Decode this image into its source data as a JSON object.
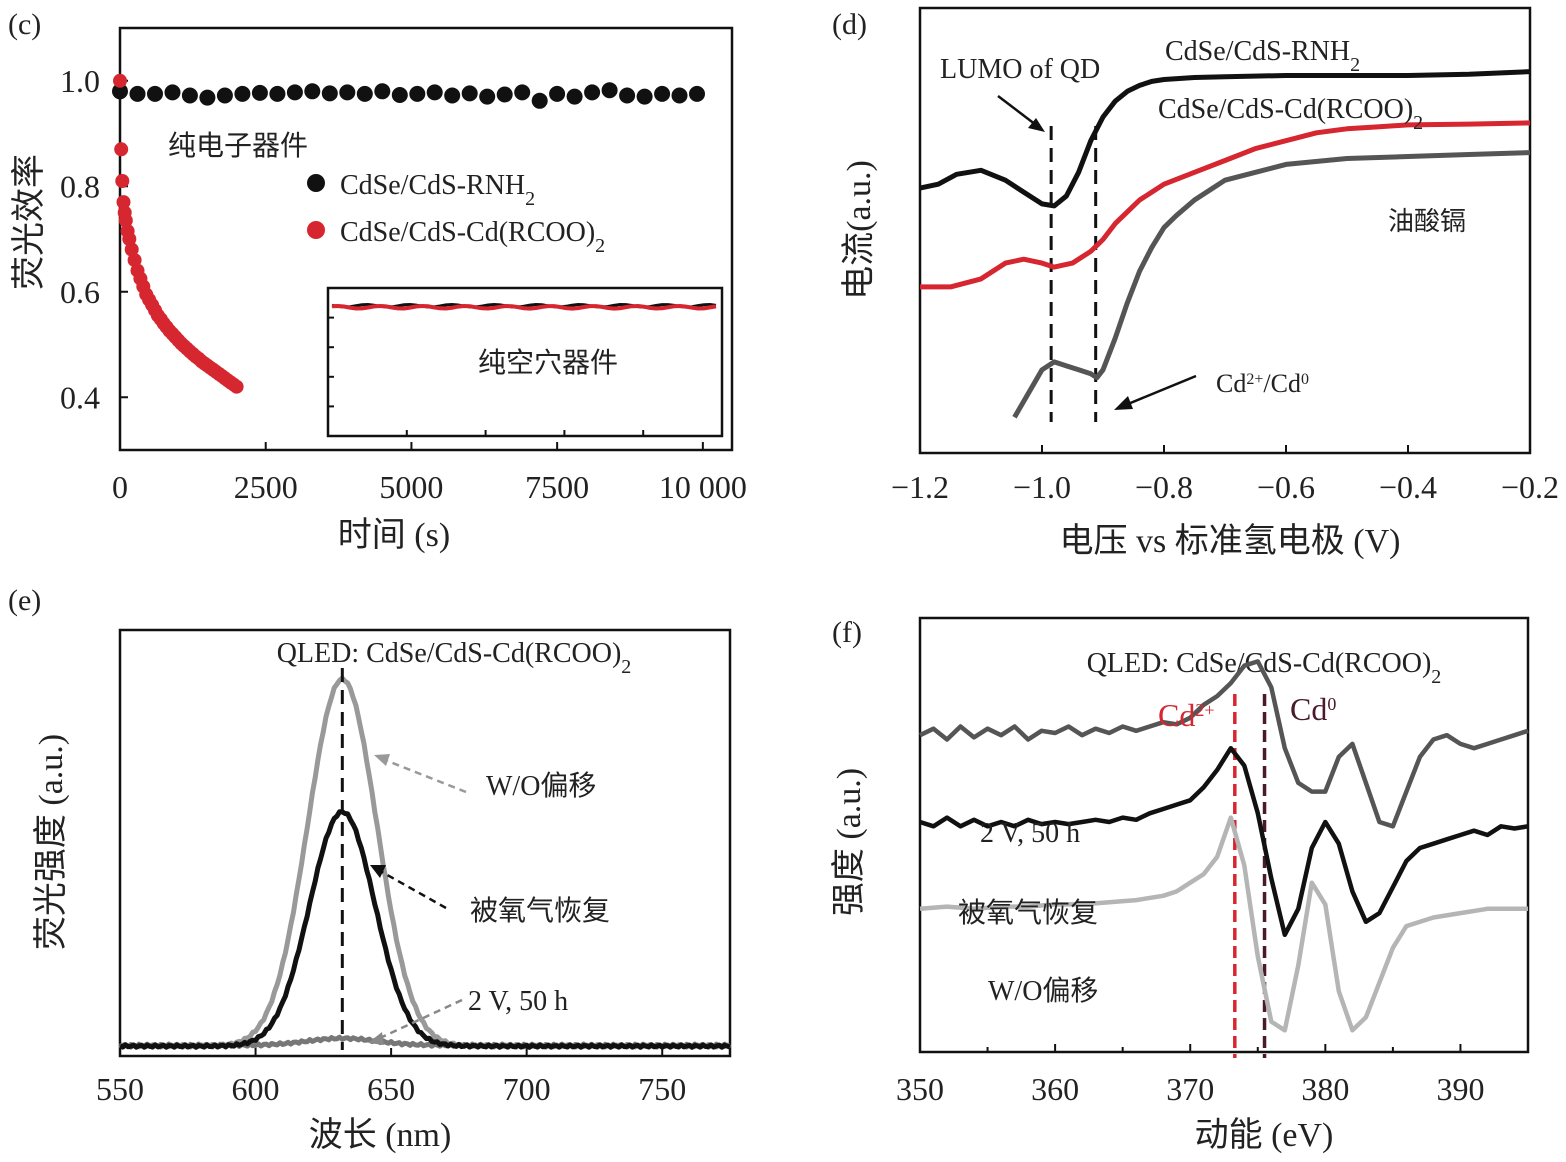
{
  "chart_data": [
    {
      "id": "c",
      "type": "scatter",
      "panel_label": "(c)",
      "xlabel": "时间 (s)",
      "ylabel": "荧光效率",
      "xlim": [
        0,
        10500
      ],
      "ylim": [
        0.3,
        1.1
      ],
      "xticks": [
        0,
        2500,
        5000,
        7500,
        10000
      ],
      "xtick_labels": [
        "0",
        "2500",
        "5000",
        "7500",
        "10 000"
      ],
      "yticks": [
        0.4,
        0.6,
        0.8,
        1.0
      ],
      "ytick_labels": [
        "0.4",
        "0.6",
        "0.8",
        "1.0"
      ],
      "annotation": "纯电子器件",
      "series": [
        {
          "name": "CdSe/CdS-RNH",
          "name_sub": "2",
          "color": "#111111",
          "x": [
            0,
            300,
            600,
            900,
            1200,
            1500,
            1800,
            2100,
            2400,
            2700,
            3000,
            3300,
            3600,
            3900,
            4200,
            4500,
            4800,
            5100,
            5400,
            5700,
            6000,
            6300,
            6600,
            6900,
            7200,
            7500,
            7800,
            8100,
            8400,
            8700,
            9000,
            9300,
            9600,
            9900
          ],
          "y": [
            0.98,
            0.975,
            0.975,
            0.978,
            0.972,
            0.968,
            0.972,
            0.975,
            0.977,
            0.975,
            0.978,
            0.98,
            0.976,
            0.978,
            0.975,
            0.98,
            0.973,
            0.975,
            0.978,
            0.972,
            0.976,
            0.97,
            0.974,
            0.978,
            0.962,
            0.975,
            0.97,
            0.978,
            0.982,
            0.972,
            0.97,
            0.975,
            0.972,
            0.975
          ]
        },
        {
          "name": "CdSe/CdS-Cd(RCOO)",
          "name_sub": "2",
          "color": "#d62630",
          "x": [
            0,
            20,
            40,
            60,
            80,
            100,
            130,
            160,
            200,
            250,
            300,
            350,
            400,
            450,
            500,
            550,
            600,
            650,
            700,
            750,
            800,
            850,
            900,
            950,
            1000,
            1050,
            1100,
            1150,
            1200,
            1250,
            1300,
            1350,
            1400,
            1450,
            1500,
            1550,
            1600,
            1650,
            1700,
            1750,
            1800,
            1850,
            1900,
            1950,
            2000
          ],
          "y": [
            1.0,
            0.87,
            0.81,
            0.77,
            0.75,
            0.735,
            0.715,
            0.7,
            0.68,
            0.66,
            0.64,
            0.625,
            0.61,
            0.595,
            0.585,
            0.575,
            0.565,
            0.555,
            0.548,
            0.54,
            0.533,
            0.526,
            0.52,
            0.514,
            0.508,
            0.502,
            0.497,
            0.492,
            0.487,
            0.482,
            0.477,
            0.473,
            0.468,
            0.464,
            0.46,
            0.456,
            0.452,
            0.448,
            0.444,
            0.44,
            0.436,
            0.432,
            0.428,
            0.424,
            0.42
          ]
        }
      ],
      "inset": {
        "annotation": "纯空穴器件",
        "line_colors": [
          "#111111",
          "#d62630"
        ],
        "y_value_fraction": 0.88
      }
    },
    {
      "id": "d",
      "type": "line",
      "panel_label": "(d)",
      "xlabel": "电压 vs 标准氢电极 (V)",
      "ylabel": "电流(a.u.)",
      "xlim": [
        -1.2,
        -0.2
      ],
      "xticks": [
        -1.2,
        -1.0,
        -0.8,
        -0.6,
        -0.4,
        -0.2
      ],
      "xtick_labels": [
        "−1.2",
        "−1.0",
        "−0.8",
        "−0.6",
        "−0.4",
        "−0.2"
      ],
      "ylim": [
        0,
        1
      ],
      "vlines": [
        -0.985,
        -0.912
      ],
      "annotations": {
        "lumo": "LUMO of QD",
        "cd_ion": "Cd",
        "cd_ion_sup1": "2+",
        "cd_ion_mid": "/Cd",
        "cd_ion_sup2": "0"
      },
      "series": [
        {
          "name": "CdSe/CdS-RNH",
          "name_sub": "2",
          "color": "#111111",
          "x": [
            -1.2,
            -1.17,
            -1.14,
            -1.1,
            -1.06,
            -1.03,
            -1.0,
            -0.98,
            -0.96,
            -0.94,
            -0.92,
            -0.9,
            -0.88,
            -0.86,
            -0.84,
            -0.82,
            -0.8,
            -0.75,
            -0.7,
            -0.6,
            -0.5,
            -0.4,
            -0.3,
            -0.2
          ],
          "y": [
            0.62,
            0.63,
            0.655,
            0.665,
            0.64,
            0.61,
            0.58,
            0.575,
            0.6,
            0.66,
            0.74,
            0.8,
            0.84,
            0.865,
            0.88,
            0.89,
            0.895,
            0.9,
            0.902,
            0.905,
            0.905,
            0.905,
            0.908,
            0.915
          ]
        },
        {
          "name": "CdSe/CdS-Cd(RCOO)",
          "name_sub": "2",
          "color": "#d62630",
          "x": [
            -1.2,
            -1.15,
            -1.1,
            -1.06,
            -1.03,
            -1.0,
            -0.98,
            -0.95,
            -0.92,
            -0.9,
            -0.88,
            -0.86,
            -0.84,
            -0.82,
            -0.8,
            -0.75,
            -0.7,
            -0.65,
            -0.6,
            -0.55,
            -0.5,
            -0.45,
            -0.4,
            -0.3,
            -0.2
          ],
          "y": [
            0.37,
            0.37,
            0.39,
            0.43,
            0.44,
            0.43,
            0.42,
            0.43,
            0.46,
            0.49,
            0.53,
            0.56,
            0.59,
            0.61,
            0.63,
            0.66,
            0.69,
            0.72,
            0.74,
            0.76,
            0.77,
            0.775,
            0.78,
            0.782,
            0.785
          ]
        },
        {
          "name": "油酸镉",
          "color": "#555555",
          "x": [
            -1.045,
            -1.03,
            -1.0,
            -0.98,
            -0.96,
            -0.94,
            -0.92,
            -0.91,
            -0.9,
            -0.88,
            -0.86,
            -0.84,
            -0.82,
            -0.8,
            -0.78,
            -0.75,
            -0.72,
            -0.7,
            -0.65,
            -0.6,
            -0.5,
            -0.4,
            -0.3,
            -0.2
          ],
          "y": [
            0.04,
            0.08,
            0.16,
            0.18,
            0.17,
            0.16,
            0.15,
            0.14,
            0.16,
            0.24,
            0.33,
            0.41,
            0.47,
            0.52,
            0.55,
            0.59,
            0.62,
            0.64,
            0.66,
            0.68,
            0.695,
            0.7,
            0.705,
            0.71
          ]
        }
      ]
    },
    {
      "id": "e",
      "type": "line",
      "panel_label": "(e)",
      "title": "QLED: CdSe/CdS-Cd(RCOO)",
      "title_sub": "2",
      "xlabel": "波长 (nm)",
      "ylabel": "荧光强度 (a.u.)",
      "xlim": [
        550,
        775
      ],
      "xticks": [
        550,
        600,
        650,
        700,
        750
      ],
      "xtick_labels": [
        "550",
        "600",
        "650",
        "700",
        "750"
      ],
      "ylim": [
        0,
        1.05
      ],
      "vline": 632,
      "series": [
        {
          "name": "W/O偏移",
          "color": "#999999",
          "center": 632,
          "width": 18,
          "amplitude": 0.94,
          "baseline": 0.01
        },
        {
          "name": "被氧气恢复",
          "color": "#111111",
          "center": 632,
          "width": 17,
          "amplitude": 0.6,
          "baseline": 0.01
        },
        {
          "name": "2 V, 50 h",
          "color": "#777777",
          "center": 632,
          "width": 18,
          "amplitude": 0.018,
          "baseline": 0.012
        }
      ]
    },
    {
      "id": "f",
      "type": "line",
      "panel_label": "(f)",
      "title": "QLED: CdSe/CdS-Cd(RCOO)",
      "title_sub": "2",
      "xlabel": "动能 (eV)",
      "ylabel": "强度 (a.u.)",
      "xlim": [
        350,
        395
      ],
      "xticks": [
        350,
        360,
        370,
        380,
        390
      ],
      "xtick_labels": [
        "350",
        "360",
        "370",
        "380",
        "390"
      ],
      "ylim": [
        0,
        1
      ],
      "vlines": [
        {
          "x": 373.3,
          "label": "Cd",
          "sup": "2+",
          "color": "#d62630"
        },
        {
          "x": 375.5,
          "label": "Cd",
          "sup": "0",
          "color": "#4a1a2c"
        }
      ],
      "series": [
        {
          "name": "2 V, 50 h",
          "color": "#555555",
          "x": [
            350,
            351,
            352,
            353,
            354,
            355,
            356,
            357,
            358,
            359,
            360,
            361,
            362,
            363,
            364,
            365,
            366,
            367,
            368,
            369,
            370,
            371,
            372,
            373,
            374,
            375,
            376,
            377,
            378,
            379,
            380,
            381,
            382,
            383,
            384,
            385,
            386,
            387,
            388,
            389,
            390,
            391,
            392,
            393,
            394,
            395
          ],
          "y": [
            0.73,
            0.745,
            0.72,
            0.75,
            0.725,
            0.745,
            0.73,
            0.75,
            0.72,
            0.74,
            0.735,
            0.75,
            0.73,
            0.745,
            0.735,
            0.75,
            0.74,
            0.75,
            0.76,
            0.755,
            0.77,
            0.8,
            0.82,
            0.85,
            0.89,
            0.9,
            0.84,
            0.7,
            0.62,
            0.6,
            0.6,
            0.68,
            0.71,
            0.62,
            0.53,
            0.52,
            0.6,
            0.68,
            0.72,
            0.73,
            0.71,
            0.7,
            0.71,
            0.72,
            0.73,
            0.74
          ]
        },
        {
          "name": "被氧气恢复",
          "color": "#111111",
          "x": [
            350,
            351,
            352,
            353,
            354,
            355,
            356,
            357,
            358,
            359,
            360,
            361,
            362,
            363,
            364,
            365,
            366,
            367,
            368,
            369,
            370,
            371,
            372,
            373,
            374,
            375,
            376,
            377,
            378,
            379,
            380,
            381,
            382,
            383,
            384,
            385,
            386,
            387,
            388,
            389,
            390,
            391,
            392,
            393,
            394,
            395
          ],
          "y": [
            0.53,
            0.52,
            0.54,
            0.52,
            0.535,
            0.52,
            0.53,
            0.52,
            0.535,
            0.525,
            0.53,
            0.525,
            0.53,
            0.535,
            0.53,
            0.54,
            0.535,
            0.55,
            0.56,
            0.57,
            0.58,
            0.61,
            0.65,
            0.7,
            0.66,
            0.55,
            0.4,
            0.27,
            0.33,
            0.47,
            0.53,
            0.48,
            0.37,
            0.3,
            0.32,
            0.38,
            0.44,
            0.47,
            0.48,
            0.49,
            0.5,
            0.51,
            0.5,
            0.52,
            0.515,
            0.52
          ]
        },
        {
          "name": "W/O偏移",
          "color": "#b5b5b5",
          "x": [
            350,
            352,
            354,
            356,
            358,
            360,
            362,
            364,
            366,
            368,
            369,
            370,
            371,
            372,
            373,
            374,
            375,
            376,
            377,
            378,
            379,
            380,
            381,
            382,
            383,
            384,
            385,
            386,
            388,
            390,
            392,
            394,
            395
          ],
          "y": [
            0.33,
            0.335,
            0.33,
            0.335,
            0.335,
            0.34,
            0.34,
            0.345,
            0.35,
            0.36,
            0.37,
            0.39,
            0.41,
            0.45,
            0.54,
            0.43,
            0.22,
            0.07,
            0.05,
            0.2,
            0.39,
            0.34,
            0.14,
            0.05,
            0.08,
            0.16,
            0.24,
            0.29,
            0.31,
            0.32,
            0.33,
            0.33,
            0.33
          ]
        }
      ]
    }
  ]
}
